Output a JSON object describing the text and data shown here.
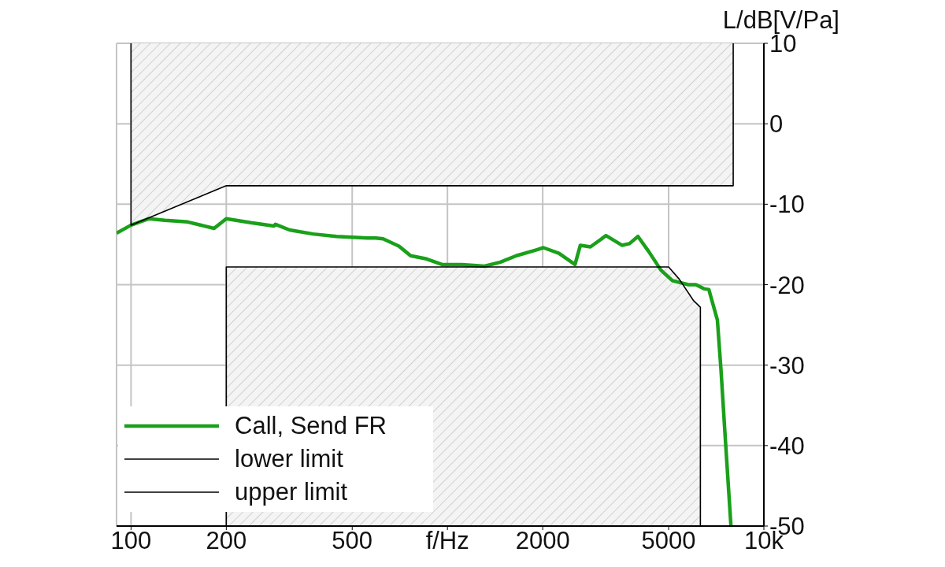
{
  "chart_data": {
    "type": "line",
    "ylabel": "L/dB[V/Pa]",
    "log": "x",
    "grid": true,
    "legend": "bottom left",
    "line_style": "solid",
    "xlim": [
      90,
      10000
    ],
    "xticks": [
      100,
      200,
      500,
      {
        "value": 1000,
        "label": "f/Hz"
      },
      2000,
      5000,
      {
        "value": 10000,
        "label": "10k"
      }
    ],
    "ylim": [
      -50,
      10
    ],
    "yticks": [
      10,
      0,
      -10,
      -20,
      -30,
      -40,
      -50
    ],
    "series": [
      {
        "name": "Call, Send FR",
        "color": "#1aa01a",
        "x": [
          90,
          100,
          114,
          128,
          151,
          170,
          183,
          200,
          239,
          283,
          286,
          317,
          376,
          446,
          559,
          594,
          626,
          702,
          765,
          859,
          962,
          1110,
          1210,
          1310,
          1470,
          1650,
          1900,
          2010,
          2250,
          2530,
          2630,
          2830,
          3170,
          3560,
          3760,
          4000,
          4330,
          4730,
          5140,
          5770,
          6100,
          6460,
          6700,
          7130,
          7320,
          7560,
          7870
        ],
        "values": [
          -13.6,
          -12.6,
          -11.8,
          -12.0,
          -12.2,
          -12.7,
          -13.0,
          -11.8,
          -12.3,
          -12.7,
          -12.5,
          -13.2,
          -13.7,
          -14.0,
          -14.2,
          -14.2,
          -14.3,
          -15.2,
          -16.4,
          -16.8,
          -17.5,
          -17.5,
          -17.6,
          -17.7,
          -17.2,
          -16.4,
          -15.7,
          -15.4,
          -16.1,
          -17.5,
          -15.1,
          -15.3,
          -13.9,
          -15.1,
          -14.9,
          -14.0,
          -15.9,
          -18.2,
          -19.5,
          -20.0,
          -20.0,
          -20.5,
          -20.6,
          -24.4,
          -30.6,
          -39.4,
          -50
        ]
      },
      {
        "name": "lower limit",
        "type": "area",
        "color": "#000000",
        "x": [
          200,
          200,
          5000,
          5400,
          6000,
          6300,
          6300
        ],
        "values": [
          -50,
          -17.8,
          -17.8,
          -19.3,
          -22,
          -22.8,
          -50
        ]
      },
      {
        "name": "upper limit",
        "type": "area",
        "color": "#000000",
        "x": [
          100,
          100,
          200,
          8000,
          8000
        ],
        "values": [
          10,
          -12.6,
          -7.7,
          -7.7,
          10
        ]
      }
    ]
  }
}
